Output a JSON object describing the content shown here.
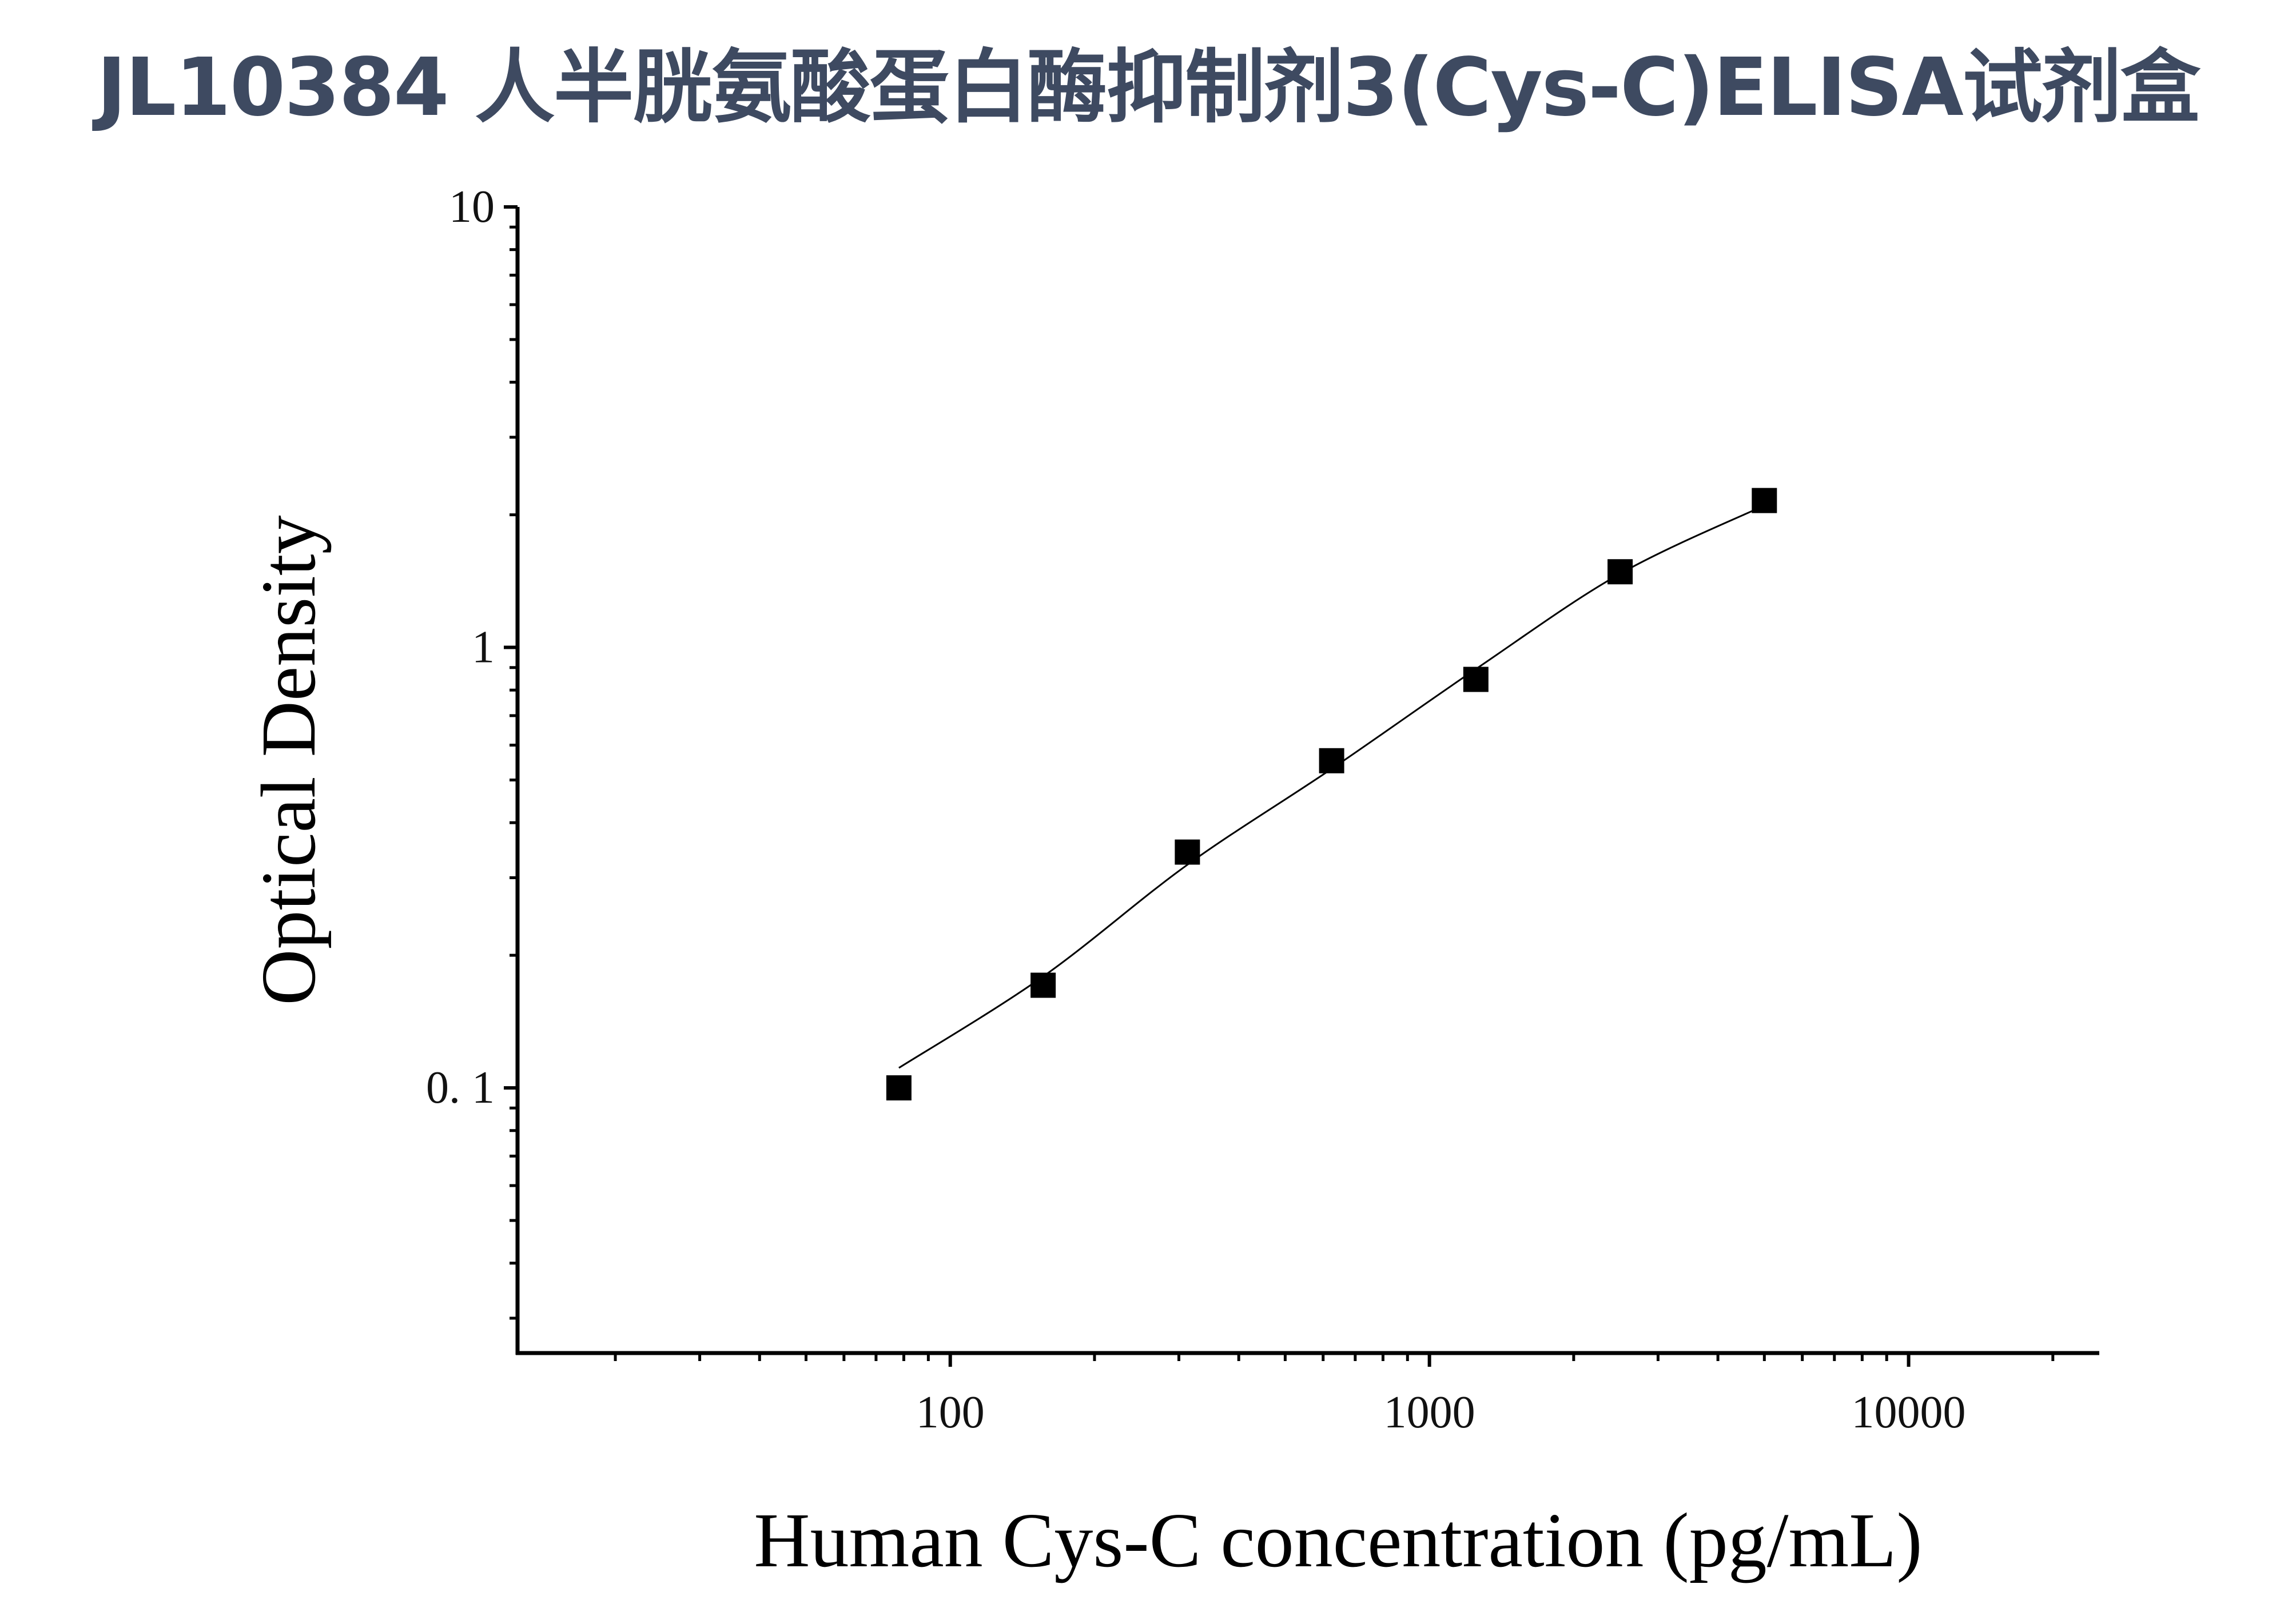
{
  "title": "JL10384 人半胱氨酸蛋白酶抑制剂3(Cys-C)ELISA试剂盒",
  "chart_data": {
    "type": "scatter",
    "title": "JL10384 人半胱氨酸蛋白酶抑制剂3(Cys-C)ELISA试剂盒",
    "xlabel": "Human Cys-C concentration (pg/mL)",
    "ylabel": "Optical Density",
    "xscale": "log",
    "yscale": "log",
    "xlim": [
      12.5,
      25000
    ],
    "ylim": [
      0.025,
      10
    ],
    "x_ticks": [
      {
        "value": 100,
        "label": "100"
      },
      {
        "value": 1000,
        "label": "1000"
      },
      {
        "value": 10000,
        "label": "10000"
      }
    ],
    "y_ticks": [
      {
        "value": 0.1,
        "label": "0. 1"
      },
      {
        "value": 1,
        "label": "1"
      },
      {
        "value": 10,
        "label": "10"
      }
    ],
    "grid": false,
    "marker": "square",
    "color": "#000000",
    "points": {
      "x": [
        78.125,
        156.25,
        312.5,
        625,
        1250,
        2500,
        5000
      ],
      "y": [
        0.1,
        0.171,
        0.343,
        0.553,
        0.846,
        1.485,
        2.155
      ]
    },
    "fit_curve": {
      "x": [
        78.125,
        156.25,
        312.5,
        625,
        1250,
        2500,
        5000
      ],
      "y": [
        0.111,
        0.179,
        0.321,
        0.53,
        0.893,
        1.47,
        2.1
      ]
    }
  }
}
